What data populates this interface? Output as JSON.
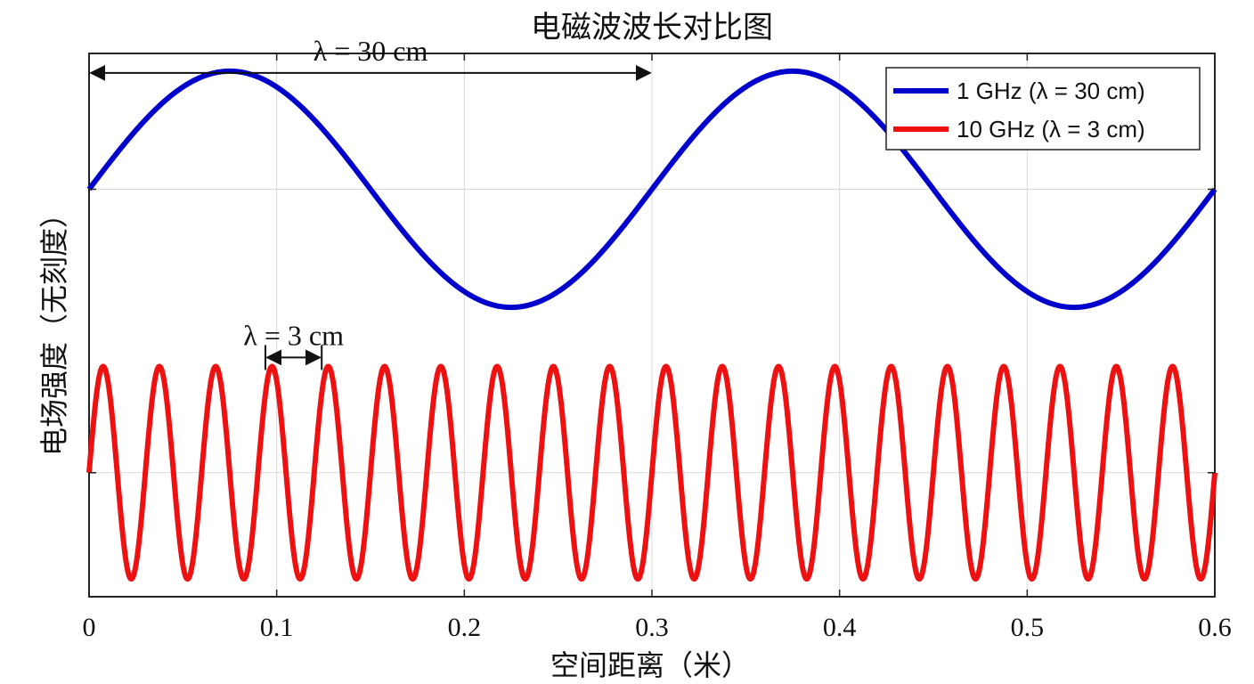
{
  "chart_data": {
    "type": "line",
    "title": "电磁波波长对比图",
    "xlabel": "空间距离（米）",
    "ylabel": "电场强度（无刻度）",
    "xlim": [
      0,
      0.6
    ],
    "x_ticks": [
      "0",
      "0.1",
      "0.2",
      "0.3",
      "0.4",
      "0.5",
      "0.6"
    ],
    "x_tick_values": [
      0,
      0.1,
      0.2,
      0.3,
      0.4,
      0.5,
      0.6
    ],
    "y_ticks_labeled": false,
    "grid": true,
    "legend_position": "top-right",
    "series": [
      {
        "name": "1 GHz (λ = 30 cm)",
        "color": "#0000cc",
        "wavelength_m": 0.3,
        "amplitude": 1,
        "baseline": 1.8,
        "function": "sine",
        "x_start": 0,
        "x_end": 0.6
      },
      {
        "name": "10 GHz (λ = 3 cm)",
        "color": "#ee1111",
        "wavelength_m": 0.03,
        "amplitude": 0.9,
        "baseline": -0.6,
        "function": "sine",
        "x_start": 0,
        "x_end": 0.6
      }
    ],
    "annotations": [
      {
        "text": "λ = 30 cm",
        "x_start": 0,
        "x_end": 0.3,
        "series": 0
      },
      {
        "text": "λ = 3 cm",
        "x_start": 0.094,
        "x_end": 0.124,
        "series": 1
      }
    ]
  }
}
